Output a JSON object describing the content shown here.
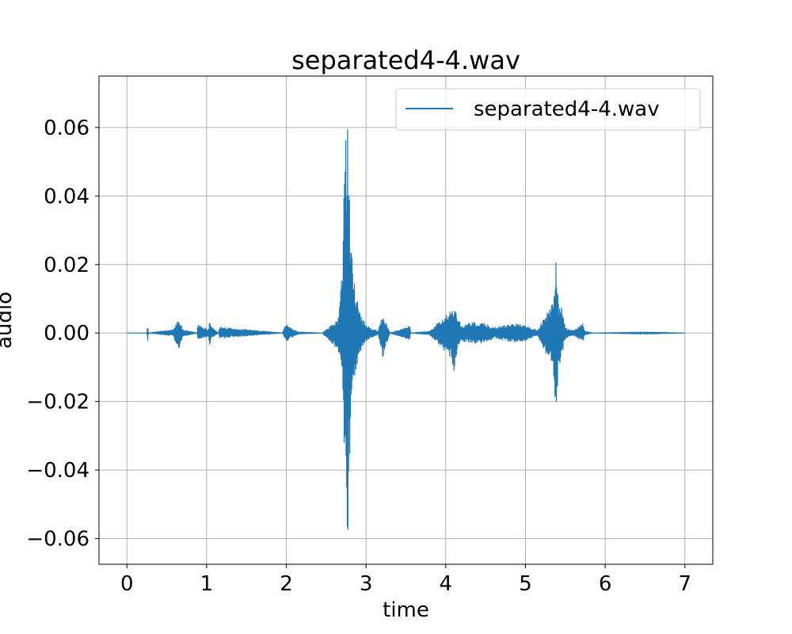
{
  "chart_data": {
    "type": "line",
    "title": "separated4-4.wav",
    "xlabel": "time",
    "ylabel": "audio",
    "xlim": [
      -0.35,
      7.35
    ],
    "ylim": [
      -0.0675,
      0.075
    ],
    "x_ticks": [
      0,
      1,
      2,
      3,
      4,
      5,
      6,
      7
    ],
    "x_tick_labels": [
      "0",
      "1",
      "2",
      "3",
      "4",
      "5",
      "6",
      "7"
    ],
    "y_ticks": [
      0.06,
      0.04,
      0.02,
      0.0,
      -0.02,
      -0.04,
      -0.06
    ],
    "y_tick_labels": [
      "0.06",
      "0.04",
      "0.02",
      "0.00",
      "−0.02",
      "−0.04",
      "−0.06"
    ],
    "grid": true,
    "legend_position": "top-right",
    "series": [
      {
        "name": "separated4-4.wav",
        "color": "#1f77b4",
        "envelope_x": [
          0.0,
          0.25,
          0.26,
          0.27,
          0.58,
          0.62,
          0.66,
          0.7,
          0.88,
          0.89,
          1.02,
          1.04,
          1.06,
          1.15,
          1.16,
          1.95,
          2.0,
          2.05,
          2.15,
          2.45,
          2.65,
          2.7,
          2.74,
          2.77,
          2.8,
          2.83,
          2.87,
          2.95,
          3.05,
          3.15,
          3.21,
          3.3,
          3.55,
          3.56,
          3.8,
          4.05,
          4.1,
          4.15,
          4.2,
          4.3,
          4.5,
          4.6,
          4.8,
          4.95,
          5.05,
          5.15,
          5.35,
          5.38,
          5.42,
          5.45,
          5.5,
          5.6,
          5.72,
          5.75,
          5.85,
          6.5,
          7.0
        ],
        "envelope_upper": [
          0.0,
          0.0,
          0.0025,
          0.0,
          0.001,
          0.003,
          0.004,
          0.001,
          0.0,
          0.0025,
          0.001,
          0.0035,
          0.002,
          0.0,
          0.0018,
          0.0,
          0.0028,
          0.0015,
          0.0003,
          0.0,
          0.004,
          0.021,
          0.057,
          0.0685,
          0.032,
          0.0195,
          0.012,
          0.004,
          0.0015,
          0.0005,
          0.0055,
          0.0,
          0.002,
          0.0,
          0.0005,
          0.0065,
          0.0075,
          0.005,
          0.002,
          0.0032,
          0.0028,
          0.0015,
          0.0027,
          0.0028,
          0.0017,
          0.0008,
          0.0095,
          0.023,
          0.0075,
          0.0085,
          0.0015,
          0.0007,
          0.0028,
          0.0005,
          0.0,
          0.0003,
          0.0
        ],
        "envelope_lower": [
          0.0,
          0.0,
          -0.0025,
          0.0,
          -0.0008,
          -0.0035,
          -0.005,
          -0.001,
          0.0,
          -0.002,
          -0.001,
          -0.004,
          -0.0015,
          0.0,
          -0.0015,
          0.0,
          -0.0025,
          -0.0015,
          -0.0003,
          0.0,
          -0.005,
          -0.012,
          -0.05,
          -0.061,
          -0.035,
          -0.017,
          -0.011,
          -0.004,
          -0.0015,
          -0.0005,
          -0.0072,
          0.0,
          -0.002,
          0.0,
          -0.0005,
          -0.007,
          -0.0115,
          -0.004,
          -0.0025,
          -0.0028,
          -0.003,
          -0.0015,
          -0.0025,
          -0.0026,
          -0.0017,
          -0.0008,
          -0.0105,
          -0.023,
          -0.0095,
          -0.0078,
          -0.0015,
          -0.0007,
          -0.0025,
          -0.0005,
          0.0,
          -0.0003,
          0.0
        ]
      }
    ]
  }
}
